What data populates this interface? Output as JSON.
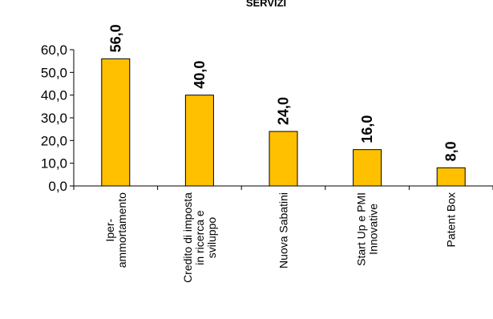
{
  "chart_data": {
    "type": "bar",
    "title": "SERVIZI",
    "categories": [
      [
        "Iper-",
        "ammortamento"
      ],
      [
        "Credito di imposta",
        "in ricerca e",
        "sviluppo"
      ],
      [
        "Nuova Sabatini"
      ],
      [
        "Start Up e PMI",
        "Innovative"
      ],
      [
        "Patent Box"
      ]
    ],
    "values": [
      56.0,
      40.0,
      24.0,
      16.0,
      8.0
    ],
    "value_labels": [
      "56,0",
      "40,0",
      "24,0",
      "16,0",
      "8,0"
    ],
    "yticks": [
      "0,0",
      "10,0",
      "20,0",
      "30,0",
      "40,0",
      "50,0",
      "60,0"
    ],
    "ylim": [
      0,
      60
    ],
    "bar_color": "#FFC000",
    "grid": false,
    "legend": "none"
  }
}
